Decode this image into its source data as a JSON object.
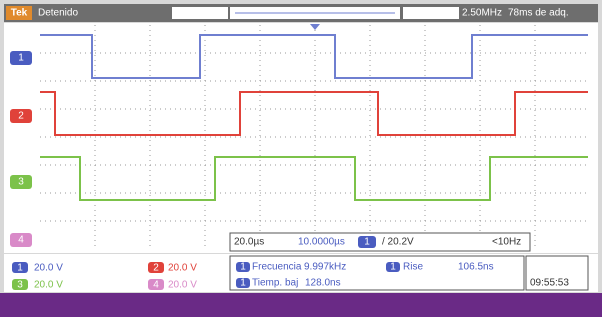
{
  "status_bar": {
    "logo": "Tek",
    "state": "Detenido",
    "rate": "2.50MHz",
    "acquisitions": "78ms de adq."
  },
  "channel_markers": [
    "1",
    "2",
    "3",
    "4"
  ],
  "timebase": {
    "scale": "20.0µs",
    "position": "10.0000µs",
    "trigger_source": "1",
    "trigger_level": "/ 20.2V",
    "trigger_freq": "<10Hz"
  },
  "channels": [
    {
      "number": "1",
      "scale": "20.0 V"
    },
    {
      "number": "2",
      "scale": "20.0 V"
    },
    {
      "number": "3",
      "scale": "20.0 V"
    },
    {
      "number": "4",
      "scale": "20.0 V"
    }
  ],
  "measurements": [
    {
      "channel": "1",
      "name": "Frecuencia",
      "value": "9.997kHz"
    },
    {
      "channel": "1",
      "name": "Rise",
      "value": "106.5ns"
    },
    {
      "channel": "1",
      "name": "Tiemp. baj",
      "value": "128.0ns"
    }
  ],
  "time": "09:55:53"
}
